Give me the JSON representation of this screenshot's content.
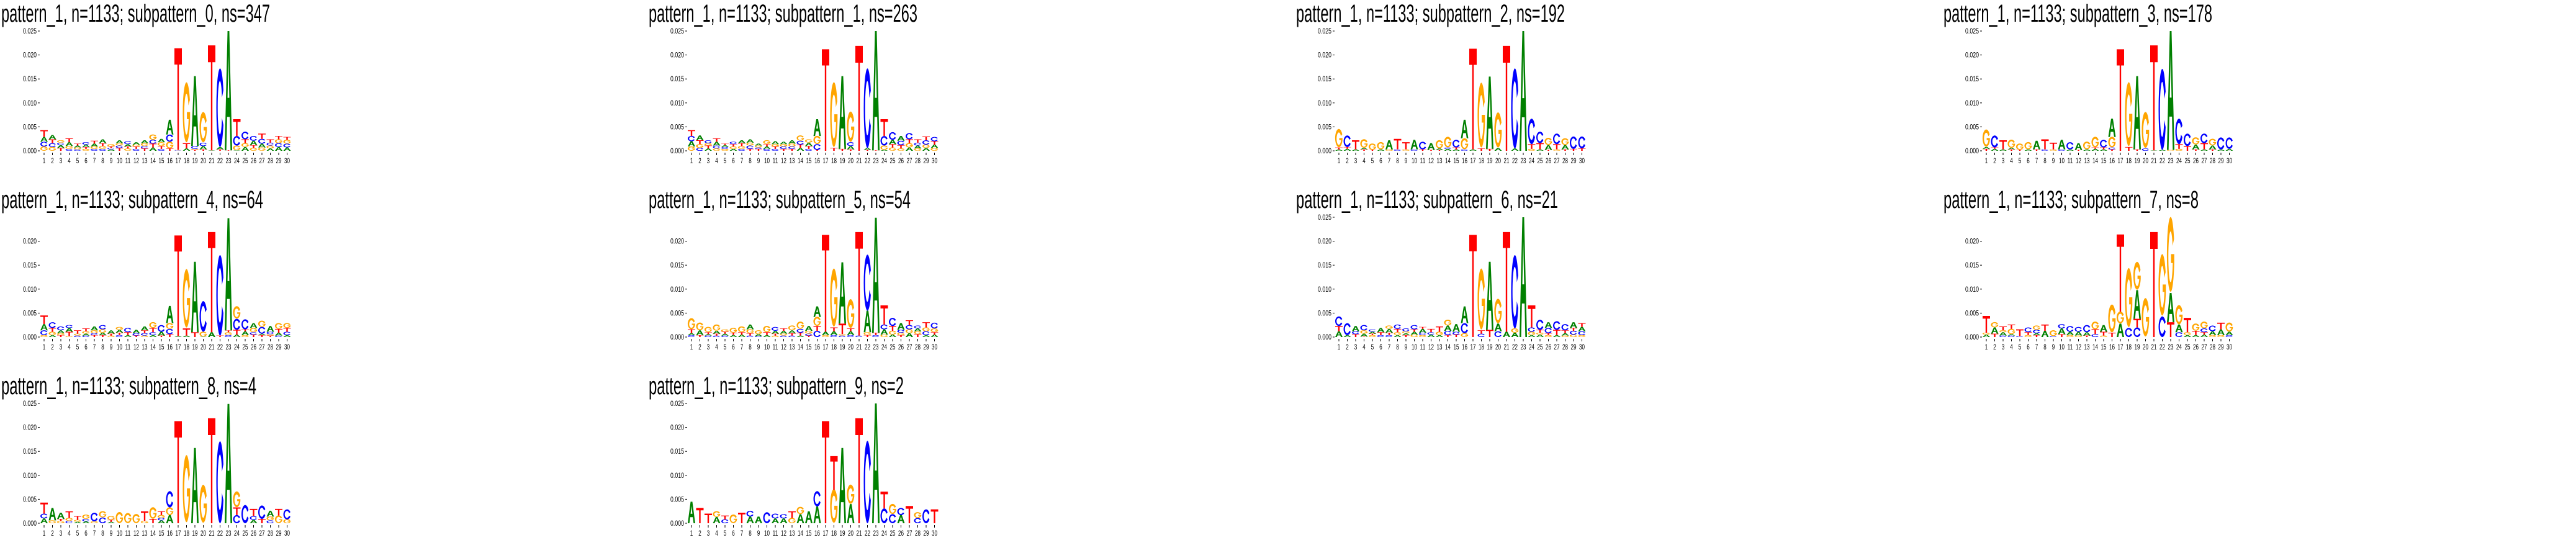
{
  "chart_data": {
    "type": "sequence-logo",
    "height_scale": 0.001,
    "colors": {
      "A": "#008000",
      "C": "#0000ff",
      "G": "#ffa500",
      "T": "#ff0000"
    },
    "x_ticks": [
      "1",
      "2",
      "3",
      "4",
      "5",
      "6",
      "7",
      "8",
      "9",
      "10",
      "11",
      "12",
      "13",
      "14",
      "15",
      "16",
      "17",
      "18",
      "19",
      "20",
      "21",
      "22",
      "23",
      "24",
      "25",
      "26",
      "27",
      "28",
      "29",
      "30"
    ],
    "ylim": [
      0,
      0.025
    ],
    "panels": [
      {
        "title": "pattern_1, n=1133; subpattern_0, ns=347",
        "yticks": [
          "0.000",
          "0.005",
          "0.010",
          "0.015",
          "0.020",
          "0.025"
        ],
        "stacks": [
          "G0.9 C1.0 A1.0 T1.4",
          "G0.8 C0.8 T0.8 A0.9",
          "T0.6 A0.6 C0.5 G0.5",
          "C0.4 G0.6 A0.8 T0.8",
          "C0.3 G0.4 A0.4 T0.4",
          "G0.4 T0.4 A0.5 C0.5",
          "C0.4 G0.5 A0.6 T0.6",
          "C0.4 G0.6 T0.6 A0.8",
          "A0.3 C0.3 T0.3 G0.5",
          "T0.6 C0.5 G0.5 A0.6",
          "G0.5 T0.4 A0.5 C0.6",
          "C0.4 T0.5 G0.4 A0.5",
          "T0.5 C0.5 G0.6 A0.6",
          "A0.7 T0.8 C0.8 G1.1",
          "C0.4 T0.6 G0.8 A0.7",
          "T0.5 G1.4 C1.5 A3.1",
          "C0.1 G0.1 T21.2",
          "A0.5 T1.1 G12.5",
          "T0.2 G0.2 C0.6 A14.6",
          "T0.3 A0.7 C0.7 G6.3",
          "A0.1 T21.9",
          "T0.3 A0.5 C16.4",
          "T0.1 A24.9",
          "A0.1 G1.0 C2.0 T3.5",
          "A0.8 G0.8 T0.8 C1.6",
          "G0.6 T0.6 A0.9 C1.0",
          "G0.7 A0.8 C1.0 T1.1",
          "A0.5 G0.6 C0.6 T0.7",
          "A0.8 C0.8 G0.8 T0.7",
          "A0.7 C0.8 G0.8 T0.6"
        ]
      },
      {
        "title": "pattern_1, n=1133; subpattern_1, ns=263",
        "yticks": [
          "0.000",
          "0.005",
          "0.010",
          "0.015",
          "0.020",
          "0.025"
        ],
        "stacks": [
          "G0.9 A1.1 C1.1 T1.2",
          "C0.6 G0.8 T0.8 A1.0",
          "A0.5 T0.6 G0.5 C0.6",
          "G0.5 C0.6 A0.8 T0.7",
          "G0.4 C0.4 A0.4 T0.3",
          "A0.4 G0.5 T0.5 C0.5",
          "C0.4 G0.6 T0.6 A0.6",
          "T0.4 C0.7 G0.6 A0.7",
          "T0.4 C0.3 G0.4 A0.4",
          "C0.4 A0.5 T0.5 G0.8",
          "C0.4 T0.5 G0.5 A0.6",
          "T0.4 C0.5 G0.5 A0.5",
          "T0.4 C0.5 G0.6 A0.7",
          "A0.6 T0.7 C0.8 G1.1",
          "C0.4 T0.6 A0.7 G0.7",
          "T0.2 C1.2 G1.7 A3.5",
          "T21.2",
          "T0.6 G13.5",
          "T0.4 A15.2",
          "T0.3 A0.7 C0.8 G6.3",
          "T21.9",
          "T0.2 A0.4 C16.6",
          "T0.1 A24.9",
          "A0.2 G0.9 C2.0 T3.5",
          "G0.7 T0.7 A0.9 C1.6",
          "G0.5 T0.7 C0.9 A1.0",
          "A0.7 G0.9 T0.8 C1.3",
          "G0.5 A0.6 C0.6 T0.7",
          "A0.6 G0.7 C0.9 T0.8",
          "G0.6 A0.7 T0.7 C0.9"
        ]
      },
      {
        "title": "pattern_1, n=1133; subpattern_2, ns=192",
        "yticks": [
          "0.000",
          "0.005",
          "0.010",
          "0.015",
          "0.020",
          "0.025"
        ],
        "stacks": [
          "A0.3 T0.4 G3.8",
          "A0.4 T0.4 C2.4",
          "A0.3 T1.9",
          "T0.3 A0.3 G1.8",
          "T0.2 G1.3",
          "A0.3 G1.5",
          "G0.3 A1.9",
          "C0.3 T2.2",
          "G0.3 T1.5",
          "C0.3 A2.0",
          "T0.3 C1.6",
          "T0.2 A1.4",
          "T0.2 A0.3 G1.7",
          "A0.4 C0.3 G2.2",
          "A0.3 T0.4 C1.6",
          "C0.3 G2.3 A3.9",
          "A0.3 T21.0",
          "T0.5 G13.5",
          "T0.4 A15.1",
          "A0.6 G7.3",
          "T21.9",
          "A0.5 C16.7",
          "A25.0",
          "G0.4 T1.0 C5.3",
          "A0.3 T1.3 C2.4",
          "T0.2 A1.0 G1.5",
          "G0.3 T1.1 C2.2",
          "T0.3 A0.9 G1.4",
          "T0.4 C2.6",
          "T0.5 C2.5"
        ]
      },
      {
        "title": "pattern_1, n=1133; subpattern_3, ns=178",
        "yticks": [
          "0.000",
          "0.005",
          "0.010",
          "0.015",
          "0.020",
          "0.025"
        ],
        "stacks": [
          "T0.4 A0.4 G3.6",
          "A0.4 T0.3 C2.5",
          "A0.3 T1.9",
          "T0.3 A0.3 G1.7",
          "T0.2 G1.3",
          "A0.3 G1.5",
          "T0.3 A1.8",
          "C0.3 T2.1",
          "G0.3 T1.4",
          "C0.3 A2.0",
          "A0.3 C1.5",
          "T0.2 A1.4",
          "A0.3 G1.6",
          "A0.4 T0.3 G2.2",
          "A0.3 T0.4 C1.6",
          "T0.3 C0.4 G2.2 A3.8",
          "T21.2",
          "T0.8 G13.3",
          "T0.3 A15.3",
          "C0.5 G7.5",
          "A0.1 T21.9",
          "A0.2 C16.9",
          "G0.2 A24.8",
          "G0.4 T1.0 C5.3",
          "T1.0 C2.6",
          "T0.3 A1.0 G1.5",
          "A0.3 T1.3 C2.0",
          "T0.3 A0.8 G1.4",
          "A0.3 C2.5",
          "A0.4 C2.4"
        ]
      },
      {
        "title": "pattern_1, n=1133; subpattern_4, ns=64",
        "yticks": [
          "0.000",
          "0.005",
          "0.010",
          "0.015",
          "0.020"
        ],
        "stacks": [
          "G0.4 C1.0 A1.3 T1.8",
          "A0.4 G0.7 T0.8 C1.2",
          "T0.4 G0.4 A0.6 C0.8",
          "G0.2 T0.9 A0.8 C0.6",
          "C0.3 G0.4 T0.7",
          "C0.3 A0.4 G0.5 T0.6",
          "T0.4 C0.4 G0.6 A0.8",
          "T0.4 A0.5 G0.7 C0.9",
          "G0.3 T0.4 A0.7",
          "C0.4 T0.5 A0.6 G0.6",
          "A0.4 T0.6 C0.9",
          "T0.3 C0.5 A0.7",
          "G0.3 C0.5 T0.6 A0.8",
          "A0.4 C0.6 T0.9 G1.2",
          "T0.3 A0.8 C1.4",
          "T0.6 C1.1 G1.2 A3.6",
          "A0.2 T21.0",
          "A0.3 T1.5 G12.2",
          "T1.0 A14.7",
          "A0.1 G1.0 C6.4",
          "A1.0 T20.9",
          "T0.3 C16.8",
          "C0.4 G0.6 T0.4 A23.4",
          "A0.5 T1.0 C2.3 G2.6",
          "G0.4 A0.8 T0.4 C2.1",
          "T0.5 C0.5 G0.9 A1.0",
          "T0.4 A0.3 C1.4 G1.3",
          "T0.3 G0.3 C0.5 A1.2",
          "C0.3 A0.6 T0.8 G1.2",
          "A0.4 C0.7 T0.8 G1.0"
        ]
      },
      {
        "title": "pattern_1, n=1133; subpattern_5, ns=54",
        "yticks": [
          "0.000",
          "0.005",
          "0.010",
          "0.015",
          "0.020"
        ],
        "stacks": [
          "C0.4 A0.4 T0.8 G2.3",
          "T0.4 A1.0 G1.6",
          "C0.3 A0.3 T0.4 G1.1",
          "C0.3 T0.4 A0.6 G1.3",
          "C0.3 A0.4 T0.4 G0.5",
          "A0.4 T0.5 G1.0",
          "A0.5 T0.5 G1.2",
          "C0.3 T0.5 G0.8 A1.0",
          "C0.2 A0.4 G0.8",
          "A0.4 T0.6 G1.3",
          "G0.3 T0.4 A0.6 C0.8",
          "C0.3 G0.4 A0.6 T0.5",
          "C0.3 T0.5 A0.6 G1.0",
          "A0.3 T0.6 C0.8 G1.5",
          "T0.3 C0.4 G0.6 A1.0",
          "C1.3 T1.0 G1.9 A2.2",
          "G0.4 A0.7 T20.2",
          "C0.4 A0.8 T0.8 G12.1",
          "C0.3 G0.3 T2.2 A12.8",
          "C0.4 A0.8 T0.6 G6.0",
          "C0.3 T21.6",
          "T0.4 G0.6 A4.5 C11.7",
          "C0.4 T0.5 A24.0",
          "G0.5 A1.1 C1.0 T4.0",
          "A0.5 G0.8 T1.0 C1.7",
          "T0.4 G0.5 C0.6 A1.4",
          "A0.8 G0.8 C0.9 T1.0",
          "T0.6 G0.6 A0.6 C0.6",
          "A0.4 C0.8 G0.8 T1.1",
          "A0.5 T0.5 G0.8 C1.2"
        ]
      },
      {
        "title": "pattern_1, n=1133; subpattern_6, ns=21",
        "yticks": [
          "0.000",
          "0.005",
          "0.010",
          "0.015",
          "0.020",
          "0.025"
        ],
        "stacks": [
          "A1.2 T1.1 C2.0",
          "A0.4 C2.5",
          "T0.6 C0.6 A1.1",
          "T0.1 A0.6 G0.7 C1.1",
          "G0.4 T0.3 A0.4 C0.5",
          "C0.4 T0.6 A0.9",
          "C0.4 T0.5 A0.8 G0.7",
          "A0.4 G0.6 T0.7 C0.9",
          "T0.4 A0.4 G0.4 C0.6",
          "G0.5 A0.6 T0.5 C0.9",
          "G0.4 C0.5 A0.8 T0.4",
          "A0.5 C0.5 T0.7",
          "A0.4 G0.7 T1.1",
          "T0.4 C0.9 A1.1 G1.2",
          "T0.5 C0.6 A1.6",
          "G0.8 C2.1 A3.5",
          "T21.3",
          "C0.7 T0.7 G12.7",
          "T1.5 A14.2",
          "C1.2 A1.6 G5.1",
          "A1.1 T20.8",
          "A0.9 G0.9 C15.3",
          "A25.0",
          "A0.4 G0.7 C0.9 T4.6",
          "A0.5 G0.4 T0.6 C2.1",
          "G0.4 T0.4 C1.1 A1.2",
          "A0.4 T1.1 C1.8",
          "G0.3 A0.5 T0.6 C1.3",
          "G0.5 C0.8 T0.6 A1.2",
          "G0.4 C0.8 A0.9 T0.8"
        ]
      },
      {
        "title": "pattern_1, n=1133; subpattern_7, ns=8",
        "yticks": [
          "0.000",
          "0.005",
          "0.010",
          "0.015",
          "0.020"
        ],
        "stacks": [
          "A0.5 G0.4 T3.5",
          "T0.7 A1.3 G1.1",
          "C0.3 A0.7 G0.4 T0.8",
          "C0.3 A0.3 G1.1 T0.9",
          "C0.2 T1.4",
          "G0.4 T0.6 C1.0",
          "T0.4 A0.4 C0.7 G0.9",
          "A1.3 T1.3",
          "C0.2 G1.2",
          "T0.6 A1.2 C0.9",
          "G0.4 A0.7 C1.2",
          "G0.3 A0.8 C1.0",
          "T0.3 A0.7 C1.5",
          "C0.6 T1.0 G1.6",
          "G0.3 T0.8 A1.4",
          "T0.9 G5.8",
          "A2.8 G2.5 T16.1",
          "C1.9 G12.3",
          "C2.0 T1.8 A6.0 G5.8",
          "G8.0",
          "T21.9",
          "C4.3 G12.8",
          "T3.1 A6.1 G15.6",
          "C1.0 A1.6 G4.0",
          "A0.4 G0.6 T3.0",
          "A0.4 T0.9 G1.5",
          "A0.5 T0.5 C0.8 G1.4",
          "G0.4 A0.8 C1.2",
          "G0.4 A1.2 T1.4",
          "C0.4 A0.7 G1.9"
        ]
      },
      {
        "title": "pattern_1, n=1133; subpattern_8, ns=4",
        "yticks": [
          "0.000",
          "0.005",
          "0.010",
          "0.015",
          "0.020",
          "0.025"
        ],
        "stacks": [
          "A1.0 C1.0 T2.3",
          "G0.6 A2.6",
          "G0.5 T0.4 A1.3",
          "C0.5 G0.6 T1.4",
          "A0.3 G0.4 T0.8",
          "A0.4 C0.5 G0.9",
          "G0.4 C1.8",
          "C1.2 G1.3",
          "A0.3 T0.4 G0.8",
          "G2.3",
          "G2.1",
          "G1.9",
          "G0.5 T2.0",
          "T0.9 G2.4",
          "A0.6 C0.5 G0.6 T0.8",
          "A1.7 G1.6 C3.4",
          "T21.3",
          "G14.0",
          "A15.7",
          "G7.9",
          "T21.9",
          "C17.1",
          "A24.9",
          "C1.7 T1.6 G3.3",
          "C3.8",
          "A0.7 C0.8 T1.5",
          "T0.9 C2.8",
          "C0.6 G0.8 A1.2",
          "G1.6 T1.4",
          "G0.8 C2.1"
        ]
      },
      {
        "title": "pattern_1, n=1133; subpattern_9, ns=2",
        "yticks": [
          "0.000",
          "0.005",
          "0.010",
          "0.015",
          "0.020",
          "0.025"
        ],
        "stacks": [
          "A4.5",
          "T3.2",
          "T2.0",
          "A1.3 G1.2",
          "C0.8 T0.8",
          "G1.8",
          "T2.2",
          "A1.4 C1.2",
          "A1.4",
          "C2.3",
          "A1.0 C1.0",
          "A1.0 C0.9",
          "G1.1 T1.4",
          "A1.9 G1.5",
          "A2.5",
          "A3.5 C3.2",
          "T21.3",
          "G7.0 T7.0",
          "A15.7",
          "A4.0 G4.0",
          "T21.9",
          "C17.2",
          "A25.0",
          "C3.1 T3.5",
          "C1.9 G2.1",
          "A1.7 C1.5",
          "T3.6",
          "C1.1 G1.2",
          "C2.9",
          "T2.9"
        ]
      }
    ]
  }
}
